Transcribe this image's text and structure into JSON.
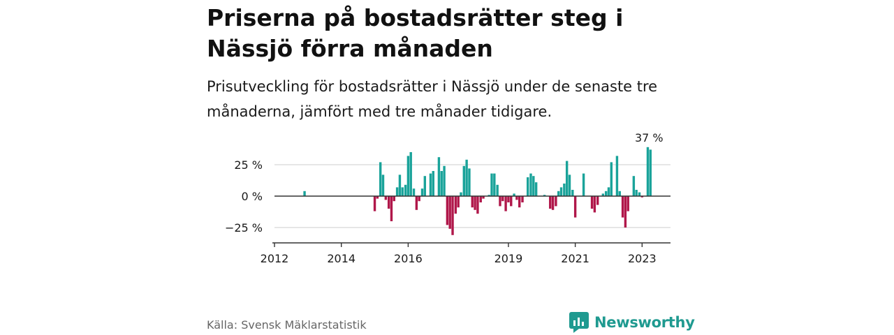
{
  "title": "Priserna på bostadsrätter steg i Nässjö förra månaden",
  "subtitle": "Prisutveckling för bostadsrätter i Nässjö under de senaste tre månaderna, jämfört med tre månader tidigare.",
  "source": "Källa: Svensk Mäklarstatistik",
  "logo_text": "Newsworthy",
  "colors": {
    "positive": "#1aa39a",
    "negative": "#b0174a",
    "brand": "#1f9a90"
  },
  "chart_data": {
    "type": "bar",
    "ylim": [
      -37,
      42
    ],
    "y_ticks": [
      25,
      0,
      -25
    ],
    "y_tick_labels": [
      "25 %",
      "0 %",
      "−25 %"
    ],
    "x_ticks": [
      2012,
      2014,
      2016,
      2019,
      2021,
      2023
    ],
    "x_tick_labels": [
      "2012",
      "2014",
      "2016",
      "2019",
      "2021",
      "2023"
    ],
    "annotation": "37 %",
    "grid": true,
    "series": [
      {
        "values": [
          [
            2012.9,
            4
          ],
          [
            2015.0,
            -12
          ],
          [
            2015.08,
            -2
          ],
          [
            2015.17,
            27
          ],
          [
            2015.25,
            17
          ],
          [
            2015.33,
            -3
          ],
          [
            2015.42,
            -10
          ],
          [
            2015.5,
            -20
          ],
          [
            2015.58,
            -4
          ],
          [
            2015.67,
            7
          ],
          [
            2015.75,
            17
          ],
          [
            2015.83,
            7
          ],
          [
            2015.92,
            9
          ],
          [
            2016.0,
            32
          ],
          [
            2016.08,
            35
          ],
          [
            2016.17,
            6
          ],
          [
            2016.25,
            -11
          ],
          [
            2016.33,
            -4
          ],
          [
            2016.42,
            6
          ],
          [
            2016.5,
            16
          ],
          [
            2016.67,
            18
          ],
          [
            2016.75,
            20
          ],
          [
            2016.92,
            31
          ],
          [
            2017.0,
            20
          ],
          [
            2017.08,
            24
          ],
          [
            2017.17,
            -23
          ],
          [
            2017.25,
            -26
          ],
          [
            2017.33,
            -31
          ],
          [
            2017.42,
            -14
          ],
          [
            2017.5,
            -9
          ],
          [
            2017.58,
            3
          ],
          [
            2017.67,
            24
          ],
          [
            2017.75,
            29
          ],
          [
            2017.83,
            22
          ],
          [
            2017.92,
            -9
          ],
          [
            2018.0,
            -11
          ],
          [
            2018.08,
            -14
          ],
          [
            2018.17,
            -5
          ],
          [
            2018.25,
            -2
          ],
          [
            2018.42,
            1
          ],
          [
            2018.5,
            18
          ],
          [
            2018.58,
            18
          ],
          [
            2018.67,
            9
          ],
          [
            2018.75,
            -8
          ],
          [
            2018.83,
            -4
          ],
          [
            2018.92,
            -12
          ],
          [
            2019.0,
            -5
          ],
          [
            2019.08,
            -8
          ],
          [
            2019.17,
            2
          ],
          [
            2019.25,
            -3
          ],
          [
            2019.33,
            -9
          ],
          [
            2019.42,
            -5
          ],
          [
            2019.58,
            15
          ],
          [
            2019.67,
            18
          ],
          [
            2019.75,
            16
          ],
          [
            2019.83,
            11
          ],
          [
            2020.08,
            1
          ],
          [
            2020.25,
            -10
          ],
          [
            2020.33,
            -11
          ],
          [
            2020.42,
            -8
          ],
          [
            2020.5,
            4
          ],
          [
            2020.58,
            7
          ],
          [
            2020.67,
            10
          ],
          [
            2020.75,
            28
          ],
          [
            2020.83,
            17
          ],
          [
            2020.92,
            5
          ],
          [
            2021.0,
            -17
          ],
          [
            2021.25,
            18
          ],
          [
            2021.5,
            -10
          ],
          [
            2021.58,
            -13
          ],
          [
            2021.67,
            -7
          ],
          [
            2021.83,
            2
          ],
          [
            2021.92,
            4
          ],
          [
            2022.0,
            7
          ],
          [
            2022.08,
            27
          ],
          [
            2022.25,
            32
          ],
          [
            2022.33,
            4
          ],
          [
            2022.42,
            -17
          ],
          [
            2022.5,
            -25
          ],
          [
            2022.58,
            -12
          ],
          [
            2022.75,
            16
          ],
          [
            2022.83,
            5
          ],
          [
            2022.92,
            3
          ],
          [
            2023.0,
            -1
          ],
          [
            2023.17,
            39
          ],
          [
            2023.25,
            37
          ]
        ]
      }
    ]
  }
}
